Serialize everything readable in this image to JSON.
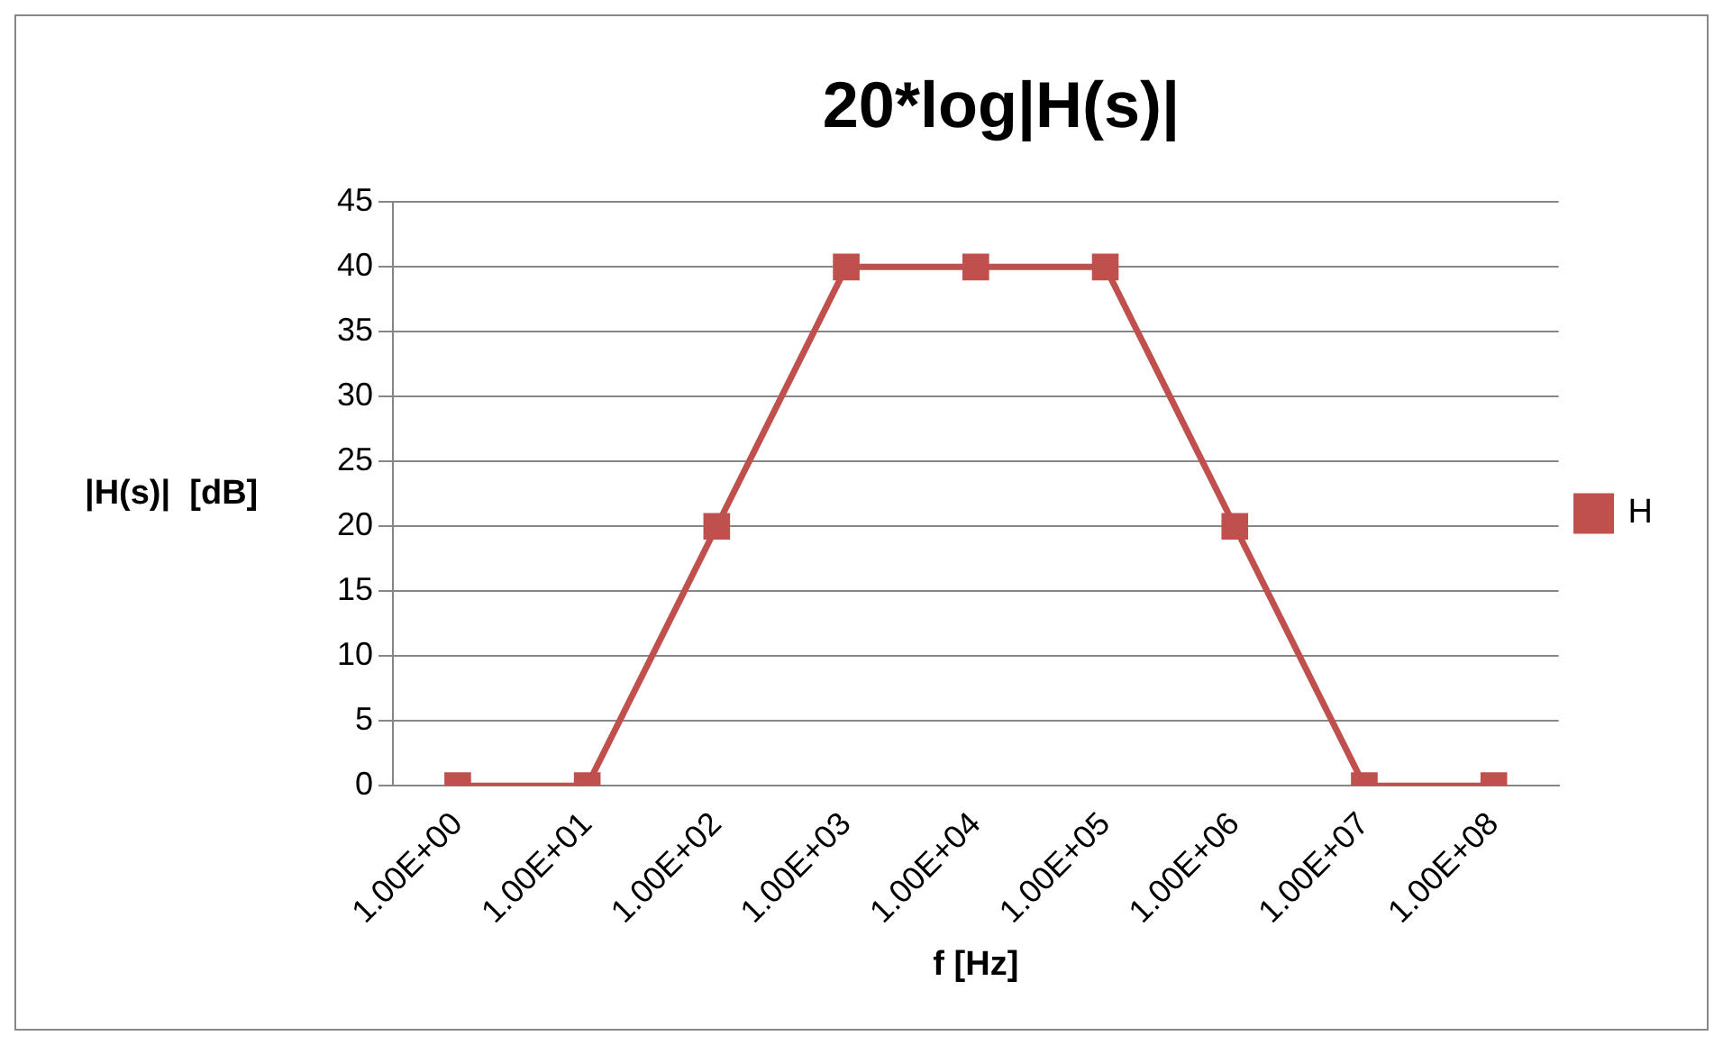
{
  "chart_data": {
    "type": "line",
    "title": "20*log|H(s)|",
    "xlabel": "f [Hz]",
    "ylabel": "|H(s)|  [dB]",
    "categories": [
      "1.00E+00",
      "1.00E+01",
      "1.00E+02",
      "1.00E+03",
      "1.00E+04",
      "1.00E+05",
      "1.00E+06",
      "1.00E+07",
      "1.00E+08"
    ],
    "series": [
      {
        "name": "H",
        "color": "#c0504d",
        "values": [
          0,
          0,
          20,
          40,
          40,
          40,
          20,
          0,
          0
        ]
      }
    ],
    "ylim": [
      0,
      45
    ],
    "yticks": [
      0,
      5,
      10,
      15,
      20,
      25,
      30,
      35,
      40,
      45
    ],
    "grid": "y",
    "legend": "right",
    "marker": "square",
    "line_style": "solid"
  }
}
